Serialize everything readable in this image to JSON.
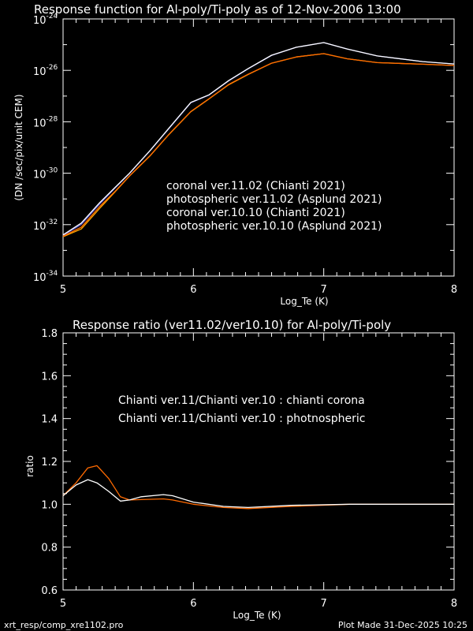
{
  "colors": {
    "background": "#000000",
    "axis": "#ffffff",
    "coronal_v11": "#ffffff",
    "photospheric_v11": "#ff6a00",
    "coronal_v10": "#6a6ae0",
    "photospheric_v10": "#ffaa00"
  },
  "footer": {
    "left": "xrt_resp/comp_xre1102.pro",
    "right": "Plot Made 31-Dec-2025 10:25"
  },
  "chart_data": [
    {
      "type": "line",
      "title": "Response function for Al-poly/Ti-poly as of 12-Nov-2006 13:00",
      "xlabel": "Log_Te (K)",
      "ylabel": "(DN /sec/pix/unit CEM)",
      "xlim": [
        5,
        8
      ],
      "ylim_log10": [
        -34,
        -24
      ],
      "yscale": "log",
      "xticks": [
        "5",
        "6",
        "7",
        "8"
      ],
      "yticks": [
        {
          "base": "10",
          "exp": "-24"
        },
        {
          "base": "10",
          "exp": "-26"
        },
        {
          "base": "10",
          "exp": "-28"
        },
        {
          "base": "10",
          "exp": "-30"
        },
        {
          "base": "10",
          "exp": "-32"
        },
        {
          "base": "10",
          "exp": "-34"
        }
      ],
      "legend_placement": "center-right",
      "x": [
        5.0,
        5.14,
        5.28,
        5.4,
        5.51,
        5.67,
        5.81,
        5.98,
        6.12,
        6.27,
        6.42,
        6.6,
        6.79,
        7.0,
        7.18,
        7.41,
        7.76,
        8.0
      ],
      "series": [
        {
          "name": "coronal ver.10.10 (Chianti 2021)",
          "color_key": "coronal_v10",
          "log10_values": [
            -32.42,
            -31.99,
            -31.2,
            -30.57,
            -30.01,
            -29.11,
            -28.28,
            -27.26,
            -26.96,
            -26.41,
            -25.94,
            -25.42,
            -25.1,
            -24.92,
            -25.17,
            -25.44,
            -25.66,
            -25.75
          ]
        },
        {
          "name": "photospheric ver.10.10 (Asplund 2021)",
          "color_key": "photospheric_v10",
          "log10_values": [
            -32.47,
            -32.17,
            -31.37,
            -30.72,
            -30.11,
            -29.31,
            -28.51,
            -27.61,
            -27.11,
            -26.56,
            -26.16,
            -25.72,
            -25.48,
            -25.35,
            -25.55,
            -25.7,
            -25.76,
            -25.81
          ]
        },
        {
          "name": "coronal ver.11.02 (Chianti 2021)",
          "color_key": "coronal_v11",
          "log10_values": [
            -32.4,
            -31.94,
            -31.15,
            -30.55,
            -30.0,
            -29.1,
            -28.26,
            -27.25,
            -26.95,
            -26.4,
            -25.93,
            -25.41,
            -25.1,
            -24.92,
            -25.17,
            -25.44,
            -25.66,
            -25.75
          ]
        },
        {
          "name": "photospheric ver.11.02 (Asplund 2021)",
          "color_key": "photospheric_v11",
          "log10_values": [
            -32.45,
            -32.1,
            -31.3,
            -30.7,
            -30.1,
            -29.3,
            -28.5,
            -27.6,
            -27.1,
            -26.55,
            -26.15,
            -25.72,
            -25.48,
            -25.35,
            -25.55,
            -25.7,
            -25.76,
            -25.81
          ]
        }
      ],
      "legend": [
        {
          "text": "coronal ver.11.02 (Chianti 2021)",
          "color_key": "coronal_v11"
        },
        {
          "text": "photospheric ver.11.02 (Asplund 2021)",
          "color_key": "photospheric_v11"
        },
        {
          "text": "coronal ver.10.10 (Chianti 2021)",
          "color_key": "coronal_v10"
        },
        {
          "text": "photospheric ver.10.10 (Asplund 2021)",
          "color_key": "photospheric_v10"
        }
      ]
    },
    {
      "type": "line",
      "title": "Response ratio (ver11.02/ver10.10) for Al-poly/Ti-poly",
      "xlabel": "Log_Te (K)",
      "ylabel": "ratio",
      "xlim": [
        5,
        8
      ],
      "ylim": [
        0.6,
        1.8
      ],
      "xticks": [
        "5",
        "6",
        "7",
        "8"
      ],
      "yticks": [
        "0.6",
        "0.8",
        "1.0",
        "1.2",
        "1.4",
        "1.6",
        "1.8"
      ],
      "legend_placement": "center",
      "x": [
        5.0,
        5.1,
        5.19,
        5.26,
        5.35,
        5.44,
        5.51,
        5.6,
        5.77,
        5.84,
        6.0,
        6.23,
        6.42,
        6.75,
        7.2,
        8.0
      ],
      "series": [
        {
          "name": "Chianti ver.11/Chianti ver.10 : photnospheric",
          "color_key": "photospheric_v11",
          "values": [
            1.04,
            1.1,
            1.17,
            1.18,
            1.12,
            1.035,
            1.02,
            1.022,
            1.025,
            1.02,
            1.0,
            0.985,
            0.98,
            0.99,
            1.0,
            1.0
          ]
        },
        {
          "name": "Chianti ver.11/Chianti ver.10 : chianti corona",
          "color_key": "coronal_v11",
          "values": [
            1.04,
            1.09,
            1.115,
            1.1,
            1.06,
            1.015,
            1.02,
            1.035,
            1.045,
            1.04,
            1.01,
            0.99,
            0.985,
            0.995,
            1.0,
            1.0
          ]
        }
      ],
      "legend": [
        {
          "text": "Chianti ver.11/Chianti ver.10 : chianti corona",
          "color_key": "coronal_v10"
        },
        {
          "text": "Chianti ver.11/Chianti ver.10 : photnospheric",
          "color_key": "photospheric_v11"
        }
      ]
    }
  ]
}
